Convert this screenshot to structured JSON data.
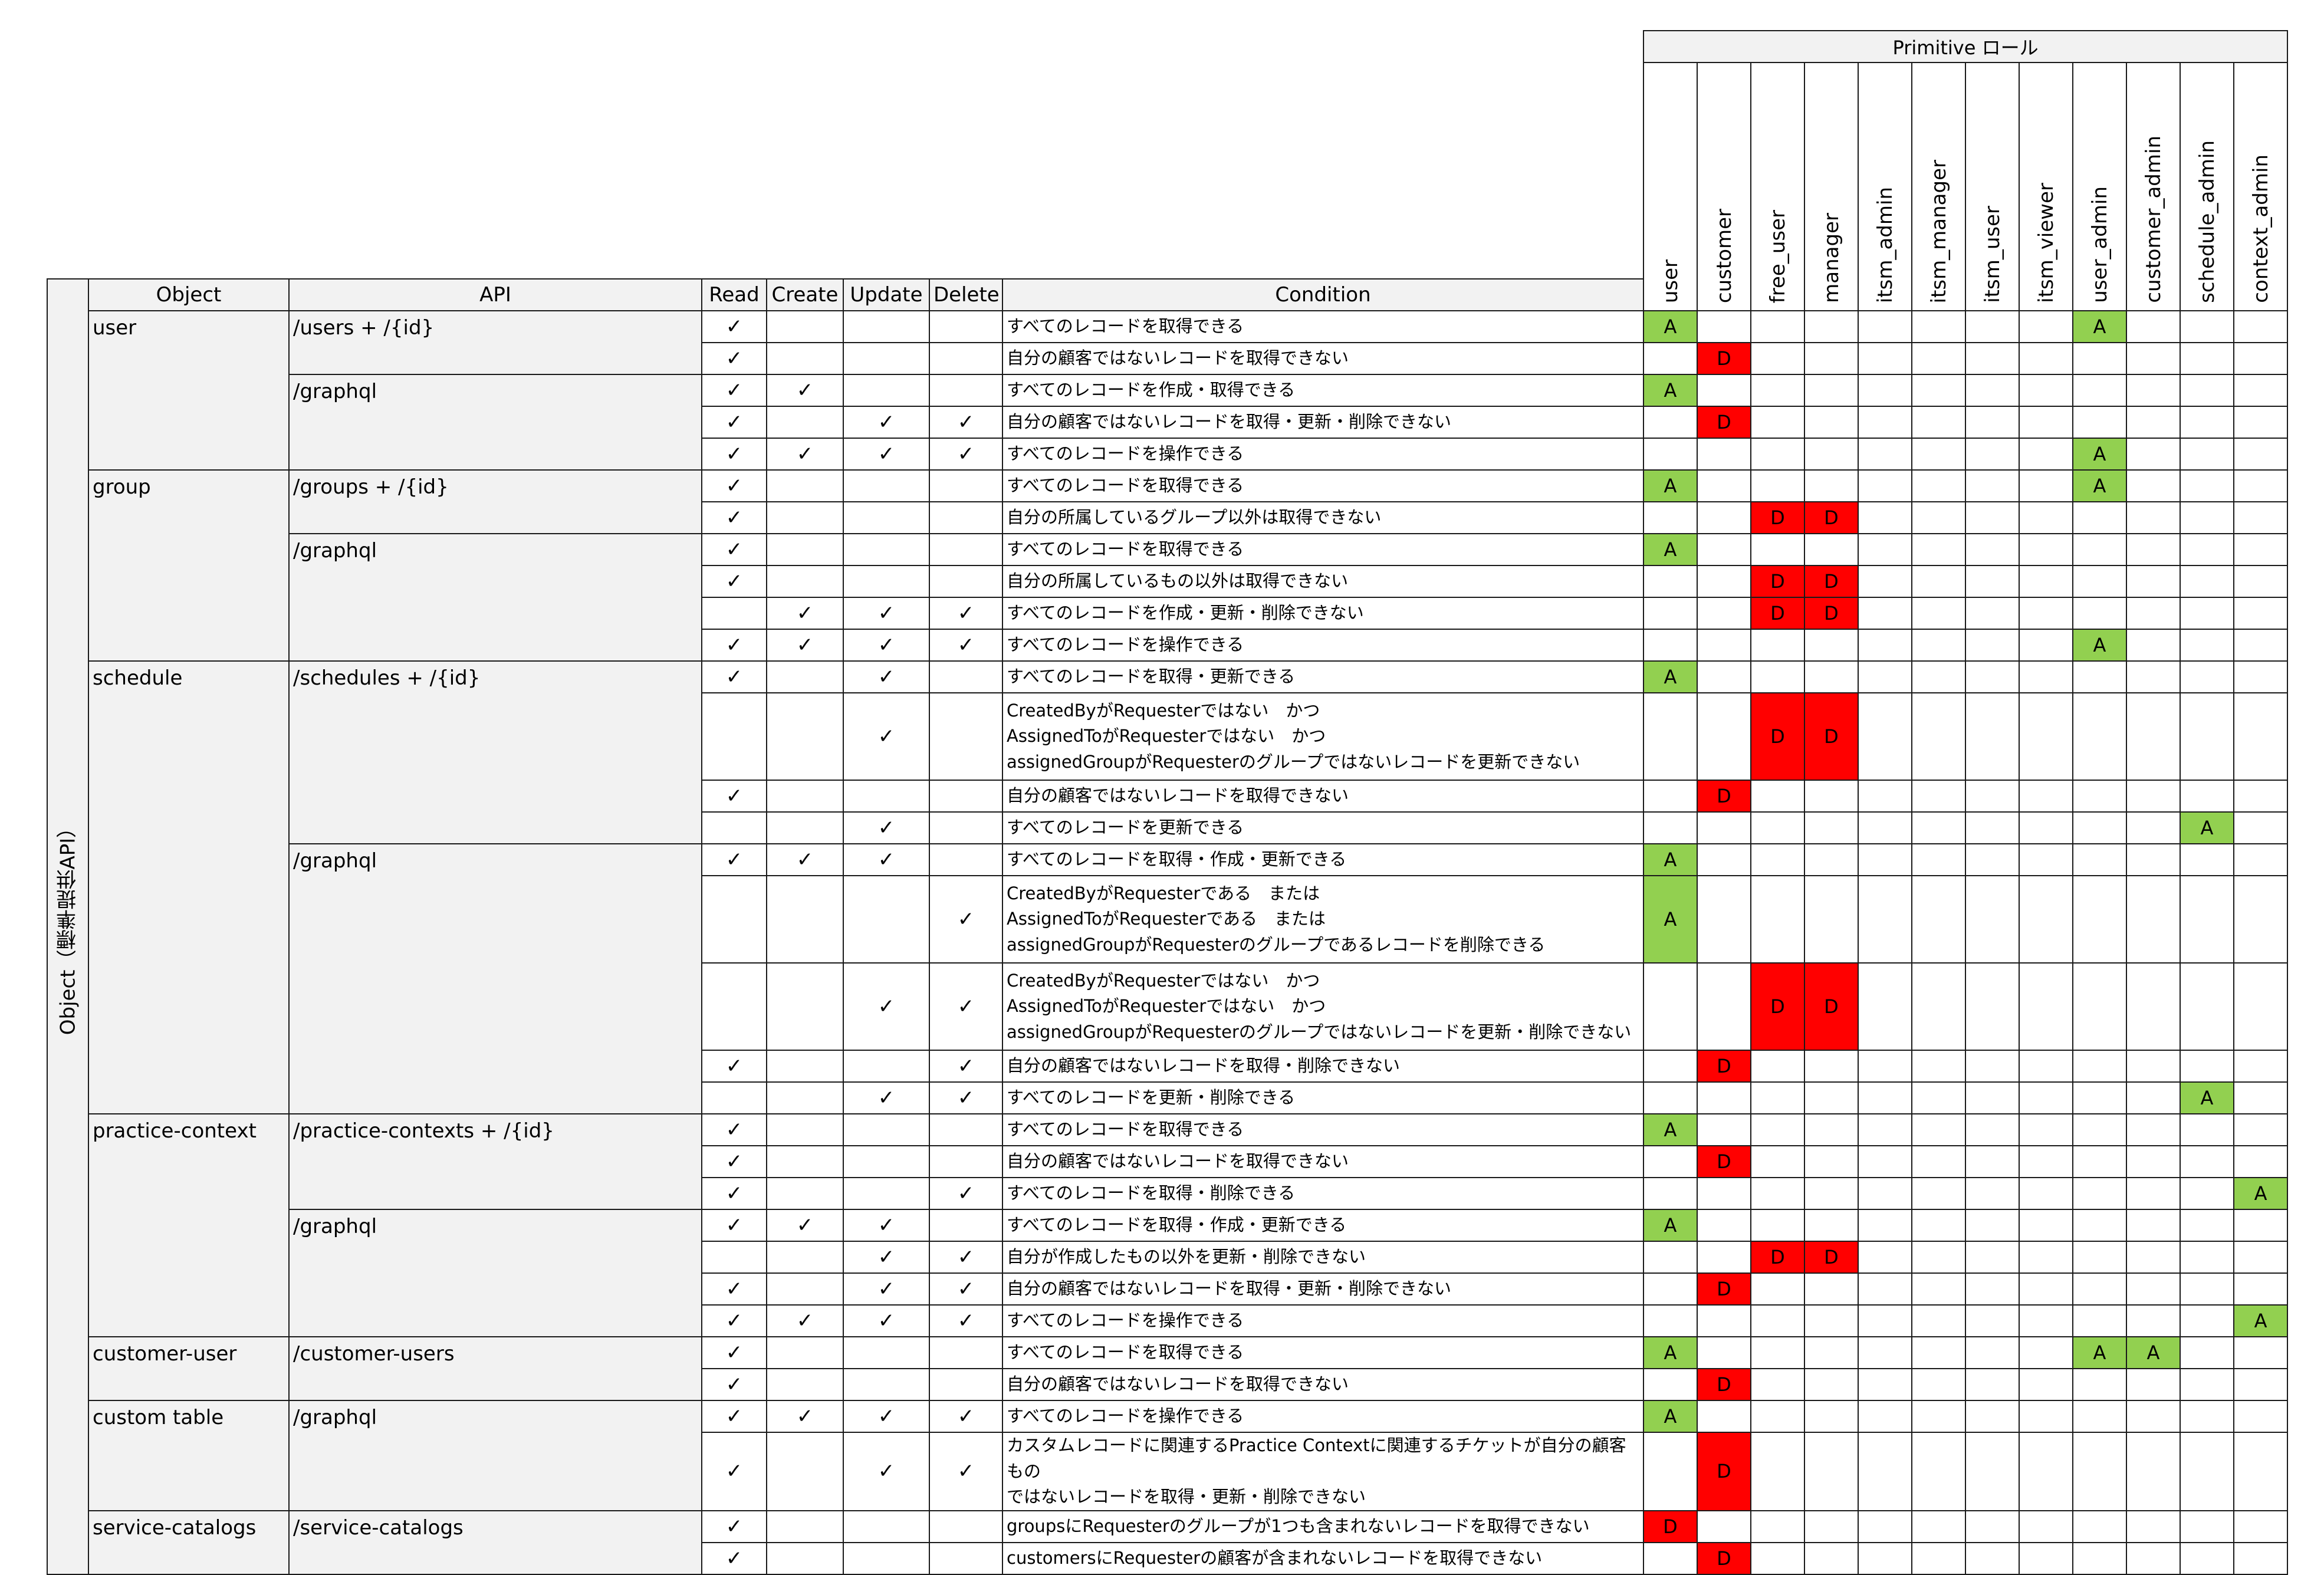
{
  "primitive_header": "Primitive ロール",
  "side_label": "Object（標準提供API）",
  "headers": {
    "object": "Object",
    "api": "API",
    "read": "Read",
    "create": "Create",
    "update": "Update",
    "delete": "Delete",
    "condition": "Condition"
  },
  "roles": [
    "user",
    "customer",
    "free_user",
    "manager",
    "itsm_admin",
    "itsm_manager",
    "itsm_user",
    "itsm_viewer",
    "user_admin",
    "customer_admin",
    "schedule_admin",
    "context_admin"
  ],
  "check_mark": "✓",
  "colors": {
    "allow": "#92d050",
    "deny": "#ff0000",
    "header_bg": "#f2f2f2"
  },
  "rows": [
    {
      "obj": "user",
      "api": "/users + /{id}",
      "r": true,
      "c": false,
      "u": false,
      "d": false,
      "cond": "すべてのレコードを取得できる",
      "roles": {
        "user": "A",
        "user_admin": "A"
      }
    },
    {
      "r": true,
      "c": false,
      "u": false,
      "d": false,
      "cond": "自分の顧客ではないレコードを取得できない",
      "roles": {
        "customer": "D"
      }
    },
    {
      "api": "/graphql",
      "r": true,
      "c": true,
      "u": false,
      "d": false,
      "cond": "すべてのレコードを作成・取得できる",
      "roles": {
        "user": "A"
      }
    },
    {
      "r": true,
      "c": false,
      "u": true,
      "d": true,
      "cond": "自分の顧客ではないレコードを取得・更新・削除できない",
      "roles": {
        "customer": "D"
      }
    },
    {
      "r": true,
      "c": true,
      "u": true,
      "d": true,
      "cond": "すべてのレコードを操作できる",
      "roles": {
        "user_admin": "A"
      }
    },
    {
      "obj": "group",
      "api": "/groups + /{id}",
      "r": true,
      "c": false,
      "u": false,
      "d": false,
      "cond": "すべてのレコードを取得できる",
      "roles": {
        "user": "A",
        "user_admin": "A"
      }
    },
    {
      "r": true,
      "c": false,
      "u": false,
      "d": false,
      "cond": "自分の所属しているグループ以外は取得できない",
      "roles": {
        "free_user": "D",
        "manager": "D"
      }
    },
    {
      "api": "/graphql",
      "r": true,
      "c": false,
      "u": false,
      "d": false,
      "cond": "すべてのレコードを取得できる",
      "roles": {
        "user": "A"
      }
    },
    {
      "r": true,
      "c": false,
      "u": false,
      "d": false,
      "cond": "自分の所属しているもの以外は取得できない",
      "roles": {
        "free_user": "D",
        "manager": "D"
      }
    },
    {
      "r": false,
      "c": true,
      "u": true,
      "d": true,
      "cond": "すべてのレコードを作成・更新・削除できない",
      "roles": {
        "free_user": "D",
        "manager": "D"
      }
    },
    {
      "r": true,
      "c": true,
      "u": true,
      "d": true,
      "cond": "すべてのレコードを操作できる",
      "roles": {
        "user_admin": "A"
      }
    },
    {
      "obj": "schedule",
      "api": "/schedules + /{id}",
      "r": true,
      "c": false,
      "u": true,
      "d": false,
      "cond": "すべてのレコードを取得・更新できる",
      "roles": {
        "user": "A"
      }
    },
    {
      "tall": 3,
      "r": false,
      "c": false,
      "u": true,
      "d": false,
      "cond": "CreatedByがRequesterではない　かつ\nAssignedToがRequesterではない　かつ\nassignedGroupがRequesterのグループではないレコードを更新できない",
      "roles": {
        "free_user": "D",
        "manager": "D"
      }
    },
    {
      "r": true,
      "c": false,
      "u": false,
      "d": false,
      "cond": "自分の顧客ではないレコードを取得できない",
      "roles": {
        "customer": "D"
      }
    },
    {
      "r": false,
      "c": false,
      "u": true,
      "d": false,
      "cond": "すべてのレコードを更新できる",
      "roles": {
        "schedule_admin": "A"
      }
    },
    {
      "api": "/graphql",
      "r": true,
      "c": true,
      "u": true,
      "d": false,
      "cond": "すべてのレコードを取得・作成・更新できる",
      "roles": {
        "user": "A"
      }
    },
    {
      "tall": 3,
      "r": false,
      "c": false,
      "u": false,
      "d": true,
      "cond": "CreatedByがRequesterである　または\nAssignedToがRequesterである　または\nassignedGroupがRequesterのグループであるレコードを削除できる",
      "roles": {
        "user": "A"
      }
    },
    {
      "tall": 3,
      "r": false,
      "c": false,
      "u": true,
      "d": true,
      "cond": "CreatedByがRequesterではない　かつ\nAssignedToがRequesterではない　かつ\nassignedGroupがRequesterのグループではないレコードを更新・削除できない",
      "roles": {
        "free_user": "D",
        "manager": "D"
      }
    },
    {
      "r": true,
      "c": false,
      "u": false,
      "d": true,
      "cond": "自分の顧客ではないレコードを取得・削除できない",
      "roles": {
        "customer": "D"
      }
    },
    {
      "r": false,
      "c": false,
      "u": true,
      "d": true,
      "cond": "すべてのレコードを更新・削除できる",
      "roles": {
        "schedule_admin": "A"
      }
    },
    {
      "obj": "practice-context",
      "api": "/practice-contexts + /{id}",
      "r": true,
      "c": false,
      "u": false,
      "d": false,
      "cond": "すべてのレコードを取得できる",
      "roles": {
        "user": "A"
      }
    },
    {
      "r": true,
      "c": false,
      "u": false,
      "d": false,
      "cond": "自分の顧客ではないレコードを取得できない",
      "roles": {
        "customer": "D"
      }
    },
    {
      "r": true,
      "c": false,
      "u": false,
      "d": true,
      "cond": "すべてのレコードを取得・削除できる",
      "roles": {
        "context_admin": "A"
      }
    },
    {
      "api": "/graphql",
      "r": true,
      "c": true,
      "u": true,
      "d": false,
      "cond": "すべてのレコードを取得・作成・更新できる",
      "roles": {
        "user": "A"
      }
    },
    {
      "r": false,
      "c": false,
      "u": true,
      "d": true,
      "cond": "自分が作成したもの以外を更新・削除できない",
      "roles": {
        "free_user": "D",
        "manager": "D"
      }
    },
    {
      "r": true,
      "c": false,
      "u": true,
      "d": true,
      "cond": "自分の顧客ではないレコードを取得・更新・削除できない",
      "roles": {
        "customer": "D"
      }
    },
    {
      "r": true,
      "c": true,
      "u": true,
      "d": true,
      "cond": "すべてのレコードを操作できる",
      "roles": {
        "context_admin": "A"
      }
    },
    {
      "obj": "customer-user",
      "api": "/customer-users",
      "r": true,
      "c": false,
      "u": false,
      "d": false,
      "cond": "すべてのレコードを取得できる",
      "roles": {
        "user": "A",
        "user_admin": "A",
        "customer_admin": "A"
      }
    },
    {
      "r": true,
      "c": false,
      "u": false,
      "d": false,
      "cond": "自分の顧客ではないレコードを取得できない",
      "roles": {
        "customer": "D"
      }
    },
    {
      "obj": "custom table",
      "api": "/graphql",
      "r": true,
      "c": true,
      "u": true,
      "d": true,
      "cond": "すべてのレコードを操作できる",
      "roles": {
        "user": "A"
      }
    },
    {
      "tall": 2,
      "r": true,
      "c": false,
      "u": true,
      "d": true,
      "cond": "カスタムレコードに関連するPractice Contextに関連するチケットが自分の顧客もの\nではないレコードを取得・更新・削除できない",
      "roles": {
        "customer": "D"
      }
    },
    {
      "obj": "service-catalogs",
      "api": "/service-catalogs",
      "r": true,
      "c": false,
      "u": false,
      "d": false,
      "cond": "groupsにRequesterのグループが1つも含まれないレコードを取得できない",
      "roles": {
        "user": "D"
      }
    },
    {
      "r": true,
      "c": false,
      "u": false,
      "d": false,
      "cond": "customersにRequesterの顧客が含まれないレコードを取得できない",
      "roles": {
        "customer": "D"
      }
    }
  ]
}
